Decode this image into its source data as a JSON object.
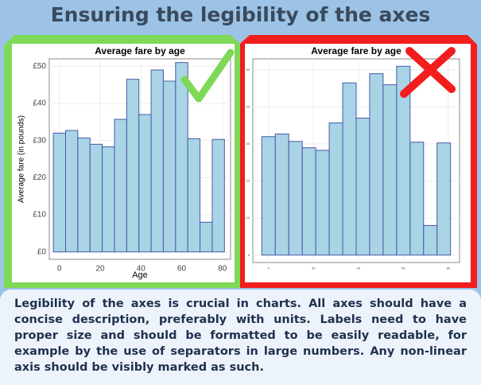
{
  "title": "Ensuring the legibility of the axes",
  "chart_data": [
    {
      "type": "bar",
      "title": "Average fare by age",
      "xlabel": "Age",
      "ylabel": "Average fare (in pounds)",
      "x": [
        0,
        6,
        12,
        18,
        24,
        30,
        36,
        42,
        48,
        54,
        60,
        66,
        72,
        78
      ],
      "values": [
        32,
        32.7,
        30.7,
        29,
        28.3,
        35.7,
        46.5,
        37,
        49,
        46,
        51,
        30.5,
        8,
        30.3
      ],
      "color": "#a8d4e6",
      "xlim": [
        -5,
        84
      ],
      "ylim": [
        -2,
        52
      ],
      "xticks": [
        0,
        20,
        40,
        60,
        80
      ],
      "yticks": [
        {
          "value": 0,
          "label": "£0"
        },
        {
          "value": 10,
          "label": "£10"
        },
        {
          "value": 20,
          "label": "£20"
        },
        {
          "value": 30,
          "label": "£30"
        },
        {
          "value": 40,
          "label": "£40"
        },
        {
          "value": 50,
          "label": "£50"
        }
      ],
      "grid": true
    },
    {
      "type": "bar",
      "title": "Average fare by age",
      "x": [
        0,
        6,
        12,
        18,
        24,
        30,
        36,
        42,
        48,
        54,
        60,
        66,
        72,
        78
      ],
      "values": [
        32,
        32.7,
        30.7,
        29,
        28.3,
        35.7,
        46.5,
        37,
        49,
        46,
        51,
        30.5,
        8,
        30.3
      ],
      "color": "#a8d4e6",
      "xlim": [
        -7,
        85
      ],
      "ylim": [
        -2,
        53
      ],
      "xticks": [
        0,
        20,
        40,
        60,
        80
      ],
      "yticks": [
        0,
        10,
        20,
        30,
        40,
        50
      ],
      "grid": true
    }
  ],
  "text": "Legibility of the axes is crucial in charts. All axes should have a concise description, preferably with units. Labels need to have proper size and should be formatted to be easily readable, for example by the use of separators in large numbers. Any non-linear axis should be visibly marked as such."
}
